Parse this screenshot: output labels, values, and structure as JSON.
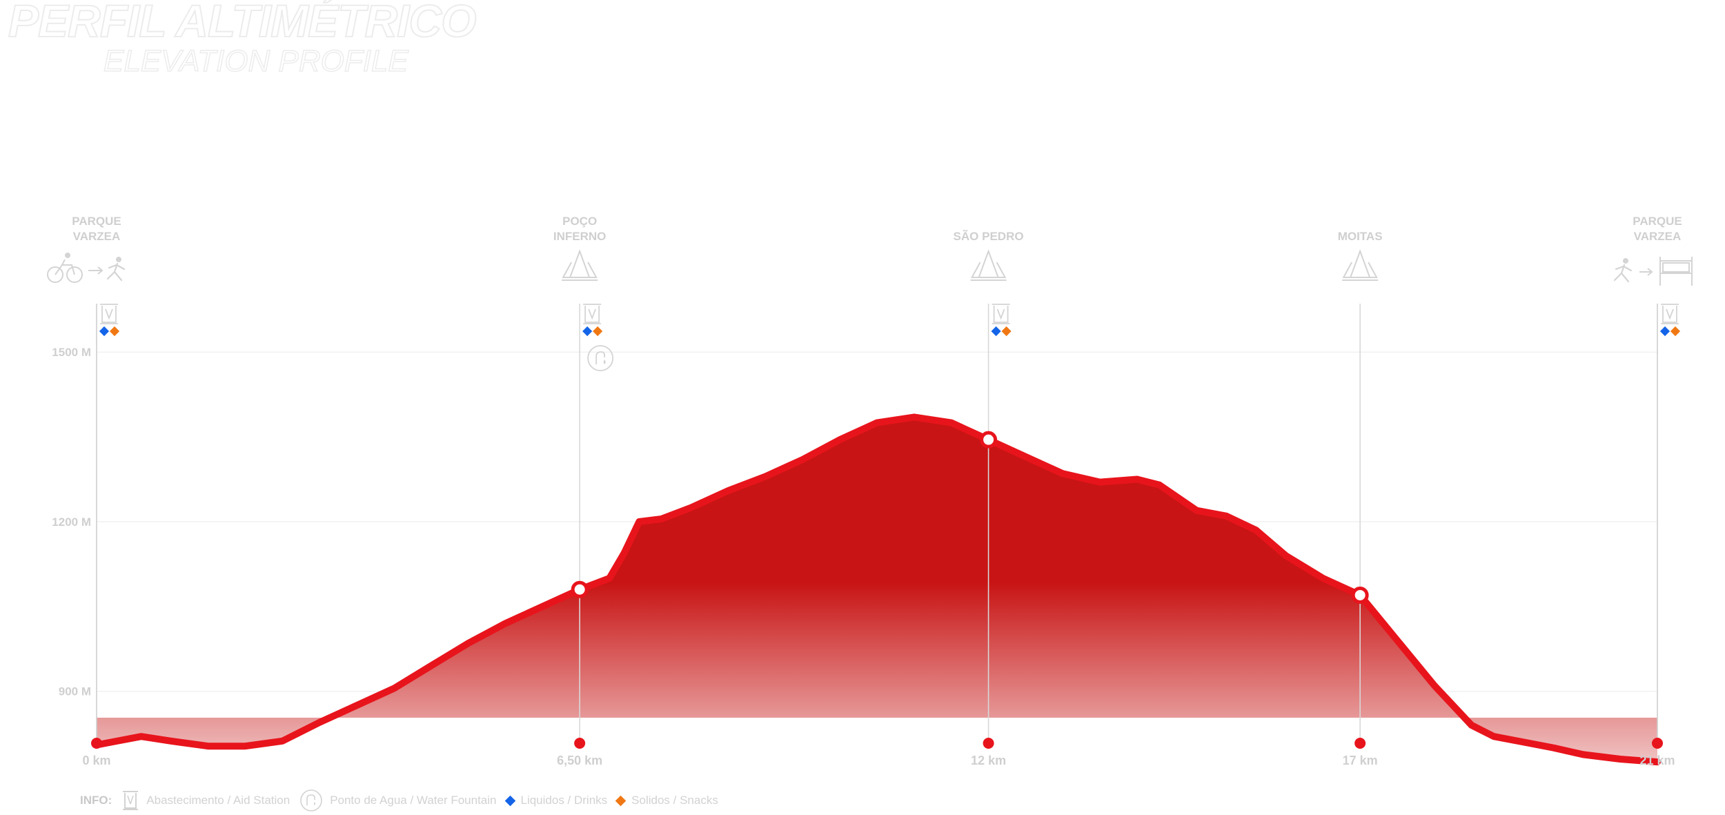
{
  "title": "PERFIL ALTIMÉTRICO",
  "subtitle": "ELEVATION PROFILE",
  "colors": {
    "line": "#e8141c",
    "fill_top": "#c81414",
    "fill_bottom": "#f0c3c3",
    "faint_text": "#cfcfcf",
    "liquids": "#1464e8",
    "solids": "#f07814"
  },
  "chart_data": {
    "type": "area",
    "xlabel": "",
    "ylabel": "",
    "xlim": [
      0,
      21
    ],
    "ylim": [
      780,
      1720
    ],
    "y_ticks": [
      {
        "value": 900,
        "label": "900 M"
      },
      {
        "value": 1200,
        "label": "1200 M"
      },
      {
        "value": 1500,
        "label": "1500 M"
      }
    ],
    "series": [
      {
        "x": [
          0,
          0.2,
          0.6,
          1.0,
          1.5,
          2.0,
          2.5,
          3.0,
          3.5,
          4.0,
          4.5,
          5.0,
          5.5,
          6.0,
          6.5,
          6.9,
          7.1,
          7.3,
          7.6,
          8.0,
          8.5,
          9.0,
          9.5,
          10.0,
          10.5,
          11.0,
          11.5,
          12.0,
          12.5,
          13.0,
          13.5,
          14.0,
          14.3,
          14.8,
          15.2,
          15.6,
          16.0,
          16.5,
          17.0,
          17.5,
          18.0,
          18.5,
          18.8,
          19.2,
          19.6,
          20.0,
          20.5,
          21.0
        ],
        "y": [
          805,
          810,
          820,
          812,
          803,
          803,
          812,
          845,
          875,
          905,
          945,
          985,
          1020,
          1050,
          1080,
          1100,
          1145,
          1200,
          1205,
          1225,
          1255,
          1280,
          1310,
          1345,
          1375,
          1385,
          1375,
          1345,
          1315,
          1285,
          1270,
          1275,
          1265,
          1220,
          1210,
          1185,
          1140,
          1100,
          1070,
          990,
          910,
          840,
          820,
          810,
          800,
          788,
          780,
          775
        ]
      }
    ],
    "checkpoints": [
      {
        "km": 0,
        "dist_label": "0 km",
        "name_lines": [
          "PARQUE",
          "VARZEA"
        ],
        "icon": "bike-to-run-icon",
        "aid_station": true,
        "liquids": true,
        "solids": true,
        "water": false,
        "marker_on_line": false
      },
      {
        "km": 6.5,
        "dist_label": "6,50 km",
        "name_lines": [
          "POÇO",
          "INFERNO"
        ],
        "icon": "forest-icon",
        "aid_station": true,
        "liquids": true,
        "solids": true,
        "water": true,
        "marker_on_line": true
      },
      {
        "km": 12,
        "dist_label": "12 km",
        "name_lines": [
          "SÃO PEDRO"
        ],
        "icon": "forest-icon",
        "aid_station": true,
        "liquids": true,
        "solids": true,
        "water": false,
        "marker_on_line": true
      },
      {
        "km": 17,
        "dist_label": "17 km",
        "name_lines": [
          "MOITAS"
        ],
        "icon": "forest-icon",
        "aid_station": false,
        "liquids": false,
        "solids": false,
        "water": false,
        "marker_on_line": true
      },
      {
        "km": 21,
        "dist_label": "21 km",
        "name_lines": [
          "PARQUE",
          "VARZEA"
        ],
        "icon": "run-to-finish-icon",
        "aid_station": true,
        "liquids": true,
        "solids": true,
        "water": false,
        "marker_on_line": false
      }
    ]
  },
  "legend": {
    "title": "INFO:",
    "aid_station": "Abastecimento / Aid Station",
    "water_fountain": "Ponto de Agua / Water Fountain",
    "liquids": "Liquidos / Drinks",
    "solids": "Solidos / Snacks"
  }
}
